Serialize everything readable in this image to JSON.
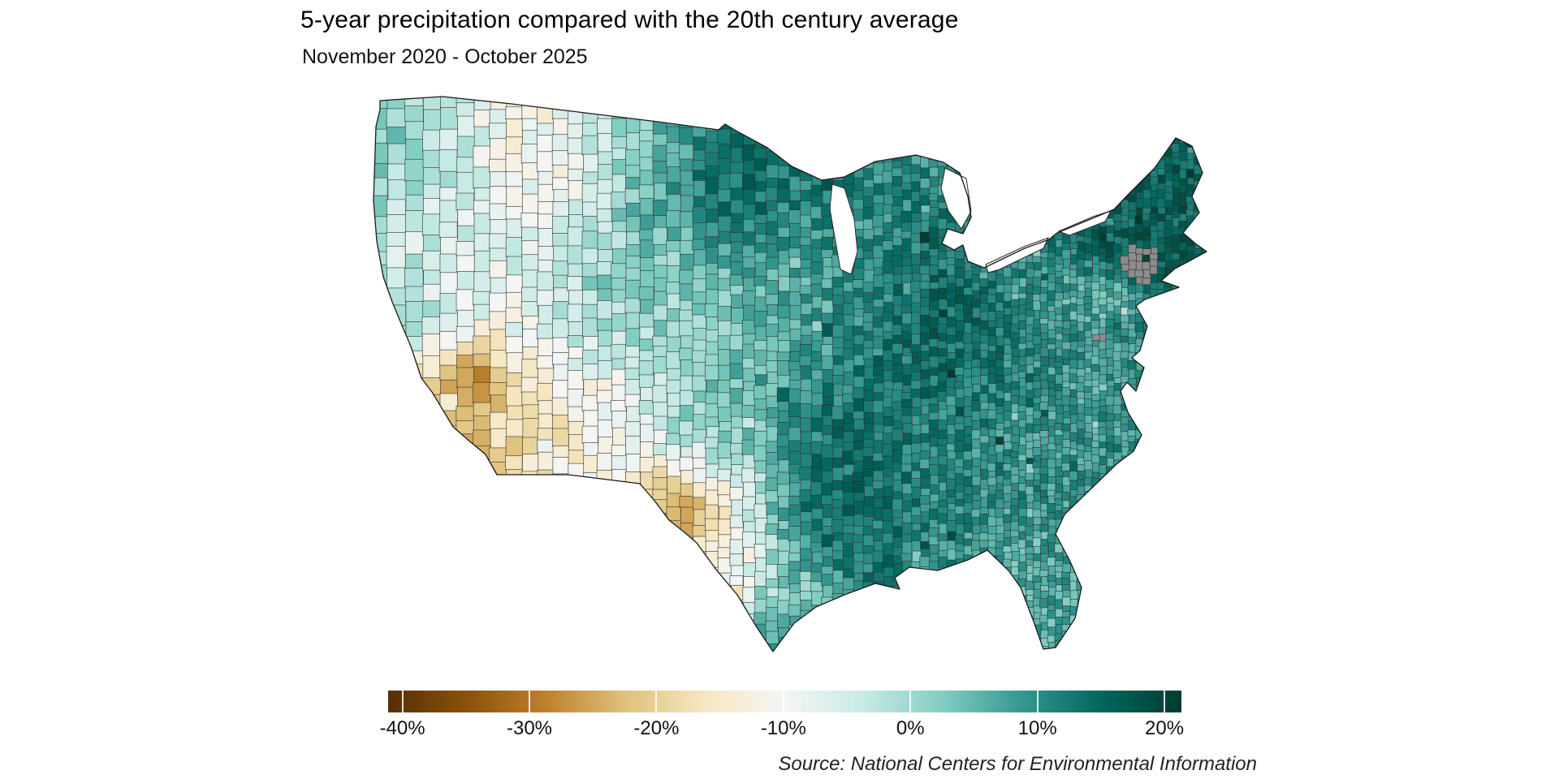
{
  "header": {
    "title": "5-year precipitation compared with the 20th century average",
    "subtitle": "November 2020 - October 2025"
  },
  "source": "Source: National Centers for Environmental Information",
  "colorbar": {
    "tick_labels": [
      "-40%",
      "-30%",
      "-20%",
      "-10%",
      "0%",
      "10%",
      "20%"
    ],
    "tick_values": [
      -40,
      -30,
      -20,
      -10,
      0,
      10,
      20
    ],
    "value_domain": [
      -41,
      21
    ],
    "colors": [
      "#543005",
      "#8c510a",
      "#bf812d",
      "#dfc27d",
      "#f6e8c3",
      "#f5f5f5",
      "#c7eae5",
      "#80cdc1",
      "#35978f",
      "#01665e",
      "#003c30"
    ],
    "no_data_color": "#8c8c8c"
  },
  "chart_data": {
    "type": "choropleth",
    "title": "5-year precipitation compared with the 20th century average",
    "subtitle": "November 2020 - October 2025",
    "geography": "Contiguous United States, by county",
    "metric": "Precipitation anomaly vs 20th century average (%)",
    "legend_range_pct": [
      -40,
      20
    ],
    "regions": [
      {
        "name": "Pacific Northwest coast (WA/OR)",
        "value": 4,
        "fx": 0.024,
        "fy": 0.099,
        "r": 0.05
      },
      {
        "name": "Inland Northwest (E WA / N ID)",
        "value": -2,
        "fx": 0.082,
        "fy": 0.106,
        "r": 0.045
      },
      {
        "name": "Montana high plains",
        "value": -13,
        "fx": 0.178,
        "fy": 0.106,
        "r": 0.065
      },
      {
        "name": "SW Montana / Idaho",
        "value": -8,
        "fx": 0.163,
        "fy": 0.227,
        "r": 0.055
      },
      {
        "name": "North Dakota",
        "value": 3,
        "fx": 0.332,
        "fy": 0.092,
        "r": 0.05
      },
      {
        "name": "Eastern Dakotas / W Minnesota",
        "value": 17,
        "fx": 0.428,
        "fy": 0.17,
        "r": 0.062
      },
      {
        "name": "N Minnesota / Wisconsin",
        "value": 11,
        "fx": 0.5,
        "fy": 0.135,
        "r": 0.052
      },
      {
        "name": "Michigan",
        "value": 10,
        "fx": 0.615,
        "fy": 0.227,
        "r": 0.052
      },
      {
        "name": "SE Lower Michigan",
        "value": 14,
        "fx": 0.654,
        "fy": 0.277,
        "r": 0.032
      },
      {
        "name": "Nevada / Great Basin",
        "value": -5,
        "fx": 0.101,
        "fy": 0.284,
        "r": 0.06
      },
      {
        "name": "Utah canyonlands",
        "value": -10,
        "fx": 0.183,
        "fy": 0.383,
        "r": 0.055
      },
      {
        "name": "Eastern Colorado",
        "value": 4,
        "fx": 0.27,
        "fy": 0.37,
        "r": 0.048
      },
      {
        "name": "California coast",
        "value": -1,
        "fx": 0.024,
        "fy": 0.355,
        "r": 0.045
      },
      {
        "name": "Southern California desert",
        "value": -24,
        "fx": 0.077,
        "fy": 0.588,
        "r": 0.042
      },
      {
        "name": "Arizona",
        "value": -22,
        "fx": 0.145,
        "fy": 0.58,
        "r": 0.055
      },
      {
        "name": "NW Arizona",
        "value": -30,
        "fx": 0.125,
        "fy": 0.497,
        "r": 0.026
      },
      {
        "name": "New Mexico",
        "value": -13,
        "fx": 0.264,
        "fy": 0.57,
        "r": 0.062
      },
      {
        "name": "West Texas / Big Bend",
        "value": -38,
        "fx": 0.375,
        "fy": 0.74,
        "r": 0.034
      },
      {
        "name": "South Texas brush country",
        "value": -14,
        "fx": 0.413,
        "fy": 0.837,
        "r": 0.045
      },
      {
        "name": "Central Texas",
        "value": -5,
        "fx": 0.433,
        "fy": 0.716,
        "r": 0.045
      },
      {
        "name": "Texas gulf coast",
        "value": 2,
        "fx": 0.505,
        "fy": 0.858,
        "r": 0.03
      },
      {
        "name": "Rio Grande Valley tip",
        "value": 8,
        "fx": 0.473,
        "fy": 0.955,
        "r": 0.02
      },
      {
        "name": "Texas panhandle / Oklahoma",
        "value": 4,
        "fx": 0.418,
        "fy": 0.525,
        "r": 0.06
      },
      {
        "name": "Kansas / Nebraska plains",
        "value": 0,
        "fx": 0.375,
        "fy": 0.362,
        "r": 0.068
      },
      {
        "name": "Iowa / N Missouri / Illinois",
        "value": 7,
        "fx": 0.519,
        "fy": 0.362,
        "r": 0.065
      },
      {
        "name": "East Texas",
        "value": 15,
        "fx": 0.543,
        "fy": 0.752,
        "r": 0.048
      },
      {
        "name": "Arkansas / Louisiana",
        "value": 14,
        "fx": 0.563,
        "fy": 0.638,
        "r": 0.052
      },
      {
        "name": "Ohio Valley / Kentucky-Tennessee",
        "value": 14,
        "fx": 0.644,
        "fy": 0.461,
        "r": 0.068
      },
      {
        "name": "Southern Appalachians",
        "value": 16,
        "fx": 0.716,
        "fy": 0.44,
        "r": 0.048
      },
      {
        "name": "Mississippi / Alabama",
        "value": 11,
        "fx": 0.615,
        "fy": 0.631,
        "r": 0.055
      },
      {
        "name": "Georgia / South Carolina",
        "value": 9,
        "fx": 0.702,
        "fy": 0.603,
        "r": 0.05
      },
      {
        "name": "Florida peninsula",
        "value": 6,
        "fx": 0.784,
        "fy": 0.89,
        "r": 0.055
      },
      {
        "name": "Coastal Carolinas",
        "value": 7,
        "fx": 0.803,
        "fy": 0.525,
        "r": 0.048
      },
      {
        "name": "Virginia / Maryland",
        "value": 8,
        "fx": 0.779,
        "fy": 0.433,
        "r": 0.042
      },
      {
        "name": "Central Pennsylvania",
        "value": 4,
        "fx": 0.813,
        "fy": 0.34,
        "r": 0.032
      },
      {
        "name": "Upstate New York",
        "value": 14,
        "fx": 0.846,
        "fy": 0.234,
        "r": 0.048
      },
      {
        "name": "New England",
        "value": 17,
        "fx": 0.905,
        "fy": 0.19,
        "r": 0.055
      },
      {
        "name": "Maine",
        "value": 14,
        "fx": 0.952,
        "fy": 0.149,
        "r": 0.04
      },
      {
        "name": "Long Island / NYC",
        "value": 2,
        "fx": 0.875,
        "fy": 0.36,
        "r": 0.018
      }
    ],
    "no_data_regions": [
      {
        "name": "Connecticut / Rhode Island",
        "fx": 0.915,
        "fy": 0.305,
        "r": 0.022
      },
      {
        "name": "Central Louisiana county",
        "fx": 0.575,
        "fy": 0.745,
        "r": 0.006
      },
      {
        "name": "Central Minnesota county",
        "fx": 0.498,
        "fy": 0.326,
        "r": 0.006
      },
      {
        "name": "Chesapeake shore counties",
        "fx": 0.862,
        "fy": 0.43,
        "r": 0.008
      }
    ]
  }
}
